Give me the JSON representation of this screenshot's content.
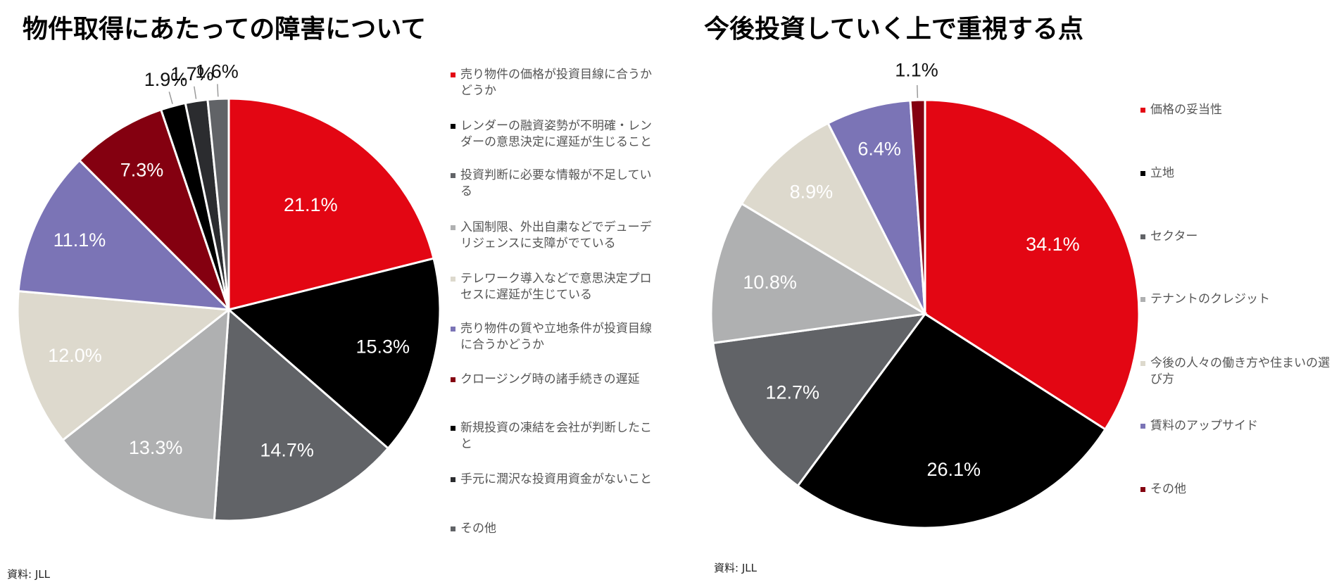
{
  "chart_data": [
    {
      "type": "pie",
      "title": "物件取得にあたっての障害について",
      "slices": [
        {
          "label": "売り物件の価格が投資目線に合うかどうか",
          "value": 21.1,
          "display": "21.1%",
          "color": "#e30613"
        },
        {
          "label": "レンダーの融資姿勢が不明確・レンダーの意思決定に遅延が生じること",
          "value": 15.3,
          "display": "15.3%",
          "color": "#000000"
        },
        {
          "label": "投資判断に必要な情報が不足している",
          "value": 14.7,
          "display": "14.7%",
          "color": "#616367"
        },
        {
          "label": "入国制限、外出自粛などでデューデリジェンスに支障がでている",
          "value": 13.3,
          "display": "13.3%",
          "color": "#afb0b1"
        },
        {
          "label": "テレワーク導入などで意思決定プロセスに遅延が生じている",
          "value": 12.0,
          "display": "12.0%",
          "color": "#ddd9cd"
        },
        {
          "label": "売り物件の質や立地条件が投資目線に合うかどうか",
          "value": 11.1,
          "display": "11.1%",
          "color": "#7b74b6"
        },
        {
          "label": "クロージング時の諸手続きの遅延",
          "value": 7.3,
          "display": "7.3%",
          "color": "#840010"
        },
        {
          "label": "新規投資の凍結を会社が判断したこと",
          "value": 1.9,
          "display": "1.9%",
          "color": "#000000"
        },
        {
          "label": "手元に潤沢な投資用資金がないこと",
          "value": 1.7,
          "display": "1.7%",
          "color": "#2b2c2f"
        },
        {
          "label": "その他",
          "value": 1.6,
          "display": "1.6%",
          "color": "#616367"
        }
      ],
      "source": "資料: JLL"
    },
    {
      "type": "pie",
      "title": "今後投資していく上で重視する点",
      "slices": [
        {
          "label": "価格の妥当性",
          "value": 34.1,
          "display": "34.1%",
          "color": "#e30613"
        },
        {
          "label": "立地",
          "value": 26.1,
          "display": "26.1%",
          "color": "#000000"
        },
        {
          "label": "セクター",
          "value": 12.7,
          "display": "12.7%",
          "color": "#616367"
        },
        {
          "label": "テナントのクレジット",
          "value": 10.8,
          "display": "10.8%",
          "color": "#afb0b1"
        },
        {
          "label": "今後の人々の働き方や住まいの選び方",
          "value": 8.9,
          "display": "8.9%",
          "color": "#ddd9cd"
        },
        {
          "label": "賃料のアップサイド",
          "value": 6.4,
          "display": "6.4%",
          "color": "#7b74b6"
        },
        {
          "label": "その他",
          "value": 1.1,
          "display": "1.1%",
          "color": "#840010"
        }
      ],
      "source": "資料: JLL"
    }
  ]
}
